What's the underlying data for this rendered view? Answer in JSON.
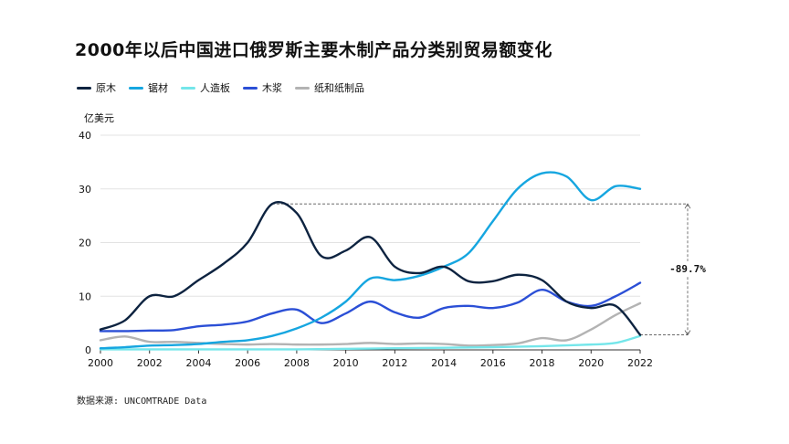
{
  "chart_data": {
    "type": "line",
    "title": "2000年以后中国进口俄罗斯主要木制产品分类别贸易额变化",
    "ylabel": "亿美元",
    "xlabel": "",
    "xlim": [
      2000,
      2022
    ],
    "ylim": [
      0,
      40
    ],
    "x_ticks": [
      "2000",
      "2002",
      "2004",
      "2006",
      "2008",
      "2010",
      "2012",
      "2014",
      "2016",
      "2018",
      "2020",
      "2022"
    ],
    "y_ticks": [
      "0",
      "10",
      "20",
      "30",
      "40"
    ],
    "grid": "horizontal",
    "legend_position": "top-left",
    "annotation": "-89.7%",
    "source": "数据来源: UNCOMTRADE Data",
    "series": [
      {
        "name": "原木",
        "color": "#0d2340",
        "points": [
          [
            2000,
            3.8
          ],
          [
            2001,
            5.5
          ],
          [
            2002,
            10
          ],
          [
            2003,
            10
          ],
          [
            2004,
            13
          ],
          [
            2005,
            16
          ],
          [
            2006,
            20
          ],
          [
            2007,
            27.2
          ],
          [
            2008,
            25.5
          ],
          [
            2009,
            17.5
          ],
          [
            2010,
            18.5
          ],
          [
            2011,
            21
          ],
          [
            2012,
            15.5
          ],
          [
            2013,
            14.3
          ],
          [
            2014,
            15.5
          ],
          [
            2015,
            12.8
          ],
          [
            2016,
            12.8
          ],
          [
            2017,
            14
          ],
          [
            2018,
            13
          ],
          [
            2019,
            9
          ],
          [
            2020,
            7.8
          ],
          [
            2021,
            8.2
          ],
          [
            2022,
            2.8
          ]
        ]
      },
      {
        "name": "锯材",
        "color": "#16a6e0",
        "points": [
          [
            2000,
            0.3
          ],
          [
            2001,
            0.5
          ],
          [
            2002,
            0.8
          ],
          [
            2003,
            0.9
          ],
          [
            2004,
            1.1
          ],
          [
            2005,
            1.5
          ],
          [
            2006,
            1.8
          ],
          [
            2007,
            2.6
          ],
          [
            2008,
            4
          ],
          [
            2009,
            6
          ],
          [
            2010,
            9
          ],
          [
            2011,
            13.3
          ],
          [
            2012,
            13
          ],
          [
            2013,
            13.8
          ],
          [
            2014,
            15.5
          ],
          [
            2015,
            18
          ],
          [
            2016,
            24
          ],
          [
            2017,
            30
          ],
          [
            2018,
            32.9
          ],
          [
            2019,
            32.3
          ],
          [
            2020,
            27.9
          ],
          [
            2021,
            30.5
          ],
          [
            2022,
            30
          ]
        ]
      },
      {
        "name": "人造板",
        "color": "#74e6ea",
        "points": [
          [
            2000,
            0.1
          ],
          [
            2002,
            0.1
          ],
          [
            2004,
            0.1
          ],
          [
            2006,
            0.1
          ],
          [
            2008,
            0.1
          ],
          [
            2010,
            0.2
          ],
          [
            2012,
            0.3
          ],
          [
            2014,
            0.4
          ],
          [
            2016,
            0.5
          ],
          [
            2018,
            0.7
          ],
          [
            2020,
            1.0
          ],
          [
            2021,
            1.3
          ],
          [
            2022,
            2.6
          ]
        ]
      },
      {
        "name": "木浆",
        "color": "#2b4fd6",
        "points": [
          [
            2000,
            3.5
          ],
          [
            2001,
            3.5
          ],
          [
            2002,
            3.6
          ],
          [
            2003,
            3.7
          ],
          [
            2004,
            4.4
          ],
          [
            2005,
            4.7
          ],
          [
            2006,
            5.3
          ],
          [
            2007,
            6.8
          ],
          [
            2008,
            7.5
          ],
          [
            2009,
            5
          ],
          [
            2010,
            6.8
          ],
          [
            2011,
            9
          ],
          [
            2012,
            7
          ],
          [
            2013,
            6
          ],
          [
            2014,
            7.8
          ],
          [
            2015,
            8.2
          ],
          [
            2016,
            7.8
          ],
          [
            2017,
            8.8
          ],
          [
            2018,
            11.2
          ],
          [
            2019,
            9
          ],
          [
            2020,
            8.2
          ],
          [
            2021,
            10
          ],
          [
            2022,
            12.5
          ]
        ]
      },
      {
        "name": "纸和纸制品",
        "color": "#b3b3b3",
        "points": [
          [
            2000,
            1.8
          ],
          [
            2001,
            2.5
          ],
          [
            2002,
            1.5
          ],
          [
            2003,
            1.5
          ],
          [
            2004,
            1.3
          ],
          [
            2005,
            1.1
          ],
          [
            2006,
            1.0
          ],
          [
            2007,
            1.1
          ],
          [
            2008,
            1.0
          ],
          [
            2009,
            1.0
          ],
          [
            2010,
            1.1
          ],
          [
            2011,
            1.3
          ],
          [
            2012,
            1.1
          ],
          [
            2013,
            1.2
          ],
          [
            2014,
            1.1
          ],
          [
            2015,
            0.8
          ],
          [
            2016,
            0.9
          ],
          [
            2017,
            1.2
          ],
          [
            2018,
            2.2
          ],
          [
            2019,
            1.8
          ],
          [
            2020,
            3.8
          ],
          [
            2021,
            6.5
          ],
          [
            2022,
            8.7
          ]
        ]
      }
    ]
  }
}
